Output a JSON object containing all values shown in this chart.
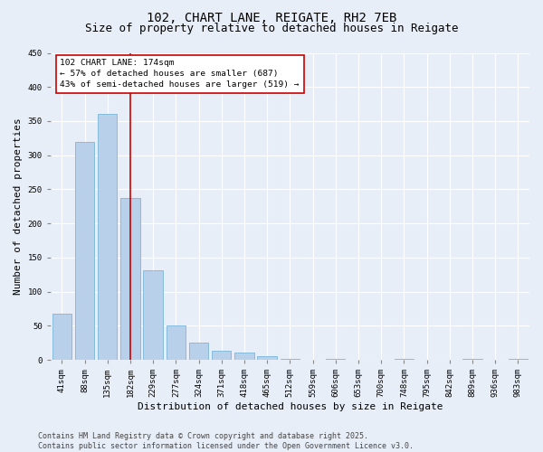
{
  "title": "102, CHART LANE, REIGATE, RH2 7EB",
  "subtitle": "Size of property relative to detached houses in Reigate",
  "xlabel": "Distribution of detached houses by size in Reigate",
  "ylabel": "Number of detached properties",
  "bar_labels": [
    "41sqm",
    "88sqm",
    "135sqm",
    "182sqm",
    "229sqm",
    "277sqm",
    "324sqm",
    "371sqm",
    "418sqm",
    "465sqm",
    "512sqm",
    "559sqm",
    "606sqm",
    "653sqm",
    "700sqm",
    "748sqm",
    "795sqm",
    "842sqm",
    "889sqm",
    "936sqm",
    "983sqm"
  ],
  "bar_values": [
    68,
    320,
    360,
    238,
    131,
    50,
    25,
    14,
    11,
    5,
    2,
    0,
    1,
    0,
    0,
    1,
    0,
    0,
    1,
    0,
    2
  ],
  "bar_color": "#b8d0ea",
  "bar_edge_color": "#6aaed6",
  "vline_x": 3,
  "vline_color": "#cc0000",
  "annotation_text": "102 CHART LANE: 174sqm\n← 57% of detached houses are smaller (687)\n43% of semi-detached houses are larger (519) →",
  "annotation_box_color": "#ffffff",
  "annotation_box_edge": "#cc0000",
  "ylim": [
    0,
    450
  ],
  "yticks": [
    0,
    50,
    100,
    150,
    200,
    250,
    300,
    350,
    400,
    450
  ],
  "footer_text": "Contains HM Land Registry data © Crown copyright and database right 2025.\nContains public sector information licensed under the Open Government Licence v3.0.",
  "bg_color": "#e8eef8",
  "plot_bg_color": "#e8eef8",
  "grid_color": "#ffffff",
  "title_fontsize": 10,
  "subtitle_fontsize": 9,
  "axis_label_fontsize": 8,
  "tick_fontsize": 6.5,
  "annotation_fontsize": 6.8,
  "footer_fontsize": 6.0
}
